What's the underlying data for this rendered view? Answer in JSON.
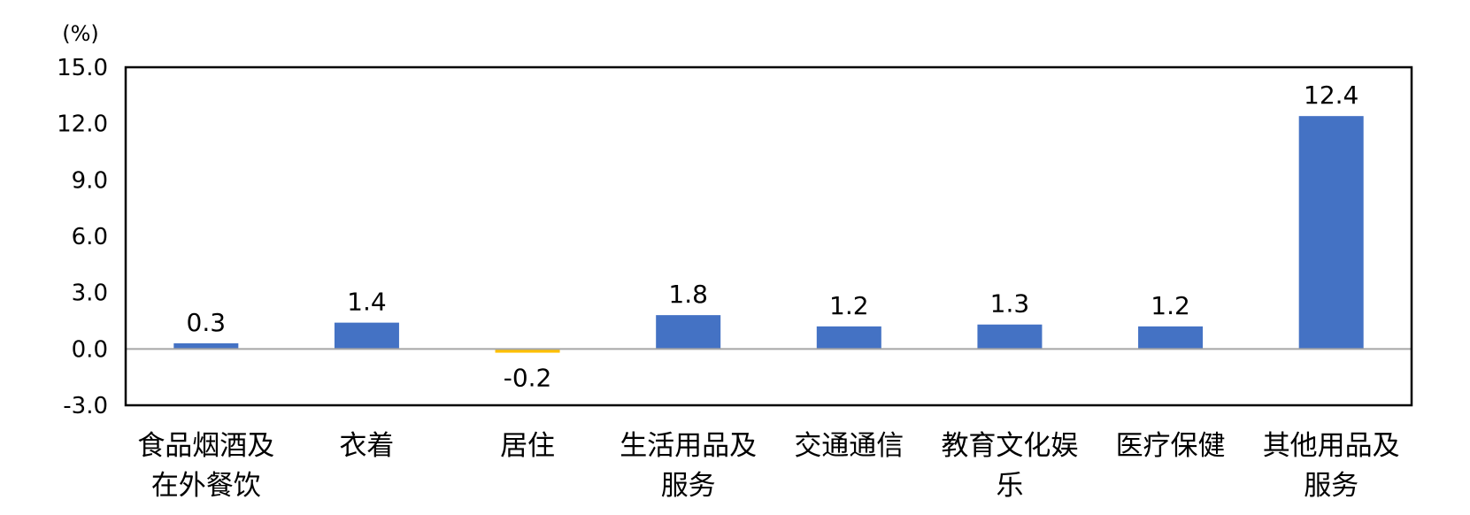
{
  "chart_data": {
    "type": "bar",
    "unit_label": "(%)",
    "categories": [
      [
        "食品烟酒及",
        "在外餐饮"
      ],
      [
        "衣着"
      ],
      [
        "居住"
      ],
      [
        "生活用品及",
        "服务"
      ],
      [
        "交通通信"
      ],
      [
        "教育文化娱",
        "乐"
      ],
      [
        "医疗保健"
      ],
      [
        "其他用品及",
        "服务"
      ]
    ],
    "values": [
      0.3,
      1.4,
      -0.2,
      1.8,
      1.2,
      1.3,
      1.2,
      12.4
    ],
    "value_labels": [
      "0.3",
      "1.4",
      "-0.2",
      "1.8",
      "1.2",
      "1.3",
      "1.2",
      "12.4"
    ],
    "ylim": [
      -3.0,
      15.0
    ],
    "yticks": [
      "-3.0",
      "0.0",
      "3.0",
      "6.0",
      "9.0",
      "12.0",
      "15.0"
    ],
    "colors": {
      "positive": "#4472C4",
      "negative": "#FFC000",
      "zero_line": "#A6A6A6",
      "frame": "#000000"
    },
    "grid": false,
    "legend": "none"
  }
}
